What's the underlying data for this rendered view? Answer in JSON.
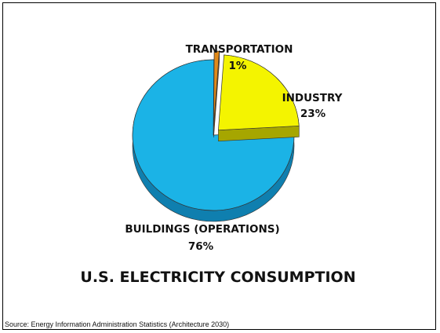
{
  "chart_data": {
    "type": "pie",
    "title": "U.S. ELECTRICITY CONSUMPTION",
    "slices": [
      {
        "label": "BUILDINGS (OPERATIONS)",
        "value": 76,
        "value_label": "76%",
        "color": "#1BB3E6",
        "side_color": "#0F7FAF"
      },
      {
        "label": "INDUSTRY",
        "value": 23,
        "value_label": "23%",
        "color": "#F4F400",
        "side_color": "#A6A600"
      },
      {
        "label": "TRANSPORTATION",
        "value": 1,
        "value_label": "1%",
        "color": "#E08A1A",
        "side_color": "#9A5A0E"
      }
    ],
    "style": "3d-exploded"
  },
  "source": "Source: Energy Information Administration Statistics (Architecture 2030)"
}
